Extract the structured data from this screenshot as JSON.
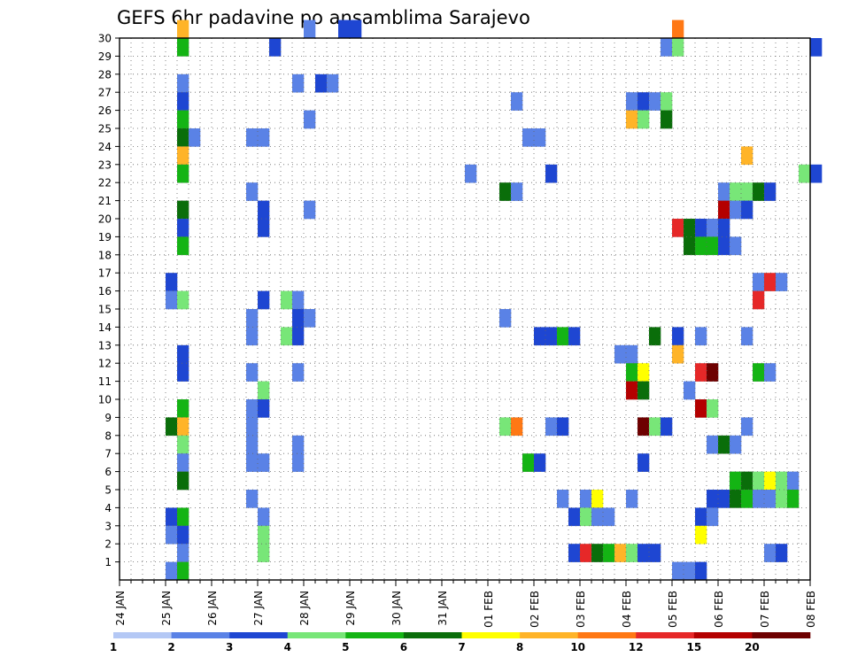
{
  "chart_data": {
    "type": "heatmap",
    "title": "GEFS 6hr padavine po ansamblima Sarajevo",
    "xlabel": "",
    "ylabel": "",
    "x_time_steps_per_day": 4,
    "x_tick_labels": [
      "24 JAN",
      "25 JAN",
      "26 JAN",
      "27 JAN",
      "28 JAN",
      "29 JAN",
      "30 JAN",
      "31 JAN",
      "01 FEB",
      "02 FEB",
      "03 FEB",
      "04 FEB",
      "05 FEB",
      "06 FEB",
      "07 FEB",
      "08 FEB"
    ],
    "ylim": [
      0,
      30
    ],
    "y_tick_labels": [
      "1",
      "2",
      "3",
      "4",
      "5",
      "6",
      "7",
      "8",
      "9",
      "10",
      "11",
      "12",
      "13",
      "14",
      "15",
      "16",
      "17",
      "18",
      "19",
      "20",
      "21",
      "22",
      "23",
      "24",
      "25",
      "26",
      "27",
      "28",
      "29",
      "30"
    ],
    "grid": true,
    "legend": "bottom-colorbar",
    "colorbar": {
      "levels": [
        "1",
        "2",
        "3",
        "4",
        "5",
        "6",
        "7",
        "8",
        "10",
        "12",
        "15",
        "20"
      ],
      "colors": [
        "#b4c8f5",
        "#5a82e6",
        "#1e46d2",
        "#78e678",
        "#14b414",
        "#0a6e0a",
        "#ffff00",
        "#ffb428",
        "#ff7814",
        "#e62828",
        "#b40000",
        "#6e0000"
      ]
    },
    "cells": [
      [
        30,
        5,
        7
      ],
      [
        30,
        16,
        1
      ],
      [
        30,
        19,
        2
      ],
      [
        30,
        20,
        2
      ],
      [
        30,
        48,
        8
      ],
      [
        29,
        5,
        4
      ],
      [
        29,
        13,
        2
      ],
      [
        29,
        47,
        1
      ],
      [
        29,
        48,
        3
      ],
      [
        29,
        60,
        2
      ],
      [
        27,
        5,
        1
      ],
      [
        27,
        15,
        1
      ],
      [
        27,
        17,
        2
      ],
      [
        27,
        18,
        1
      ],
      [
        26,
        5,
        2
      ],
      [
        26,
        34,
        1
      ],
      [
        26,
        44,
        1
      ],
      [
        26,
        45,
        2
      ],
      [
        26,
        46,
        1
      ],
      [
        26,
        47,
        3
      ],
      [
        25,
        5,
        4
      ],
      [
        25,
        16,
        1
      ],
      [
        25,
        44,
        7
      ],
      [
        25,
        45,
        3
      ],
      [
        25,
        47,
        5
      ],
      [
        24,
        5,
        5
      ],
      [
        24,
        6,
        1
      ],
      [
        24,
        11,
        1
      ],
      [
        24,
        12,
        1
      ],
      [
        24,
        35,
        1
      ],
      [
        24,
        36,
        1
      ],
      [
        23,
        5,
        7
      ],
      [
        23,
        54,
        7
      ],
      [
        22,
        5,
        4
      ],
      [
        22,
        30,
        1
      ],
      [
        22,
        37,
        2
      ],
      [
        22,
        59,
        3
      ],
      [
        22,
        60,
        2
      ],
      [
        21,
        11,
        1
      ],
      [
        21,
        33,
        5
      ],
      [
        21,
        34,
        1
      ],
      [
        21,
        52,
        1
      ],
      [
        21,
        53,
        3
      ],
      [
        21,
        54,
        3
      ],
      [
        21,
        55,
        5
      ],
      [
        21,
        56,
        2
      ],
      [
        20,
        5,
        5
      ],
      [
        20,
        12,
        2
      ],
      [
        20,
        16,
        1
      ],
      [
        20,
        52,
        10
      ],
      [
        20,
        53,
        1
      ],
      [
        20,
        54,
        2
      ],
      [
        19,
        5,
        2
      ],
      [
        19,
        12,
        2
      ],
      [
        19,
        48,
        9
      ],
      [
        19,
        49,
        5
      ],
      [
        19,
        50,
        2
      ],
      [
        19,
        51,
        1
      ],
      [
        19,
        52,
        2
      ],
      [
        18,
        5,
        4
      ],
      [
        18,
        49,
        5
      ],
      [
        18,
        50,
        4
      ],
      [
        18,
        51,
        4
      ],
      [
        18,
        52,
        2
      ],
      [
        18,
        53,
        1
      ],
      [
        16,
        4,
        2
      ],
      [
        16,
        55,
        1
      ],
      [
        16,
        56,
        9
      ],
      [
        16,
        57,
        1
      ],
      [
        15,
        4,
        1
      ],
      [
        15,
        5,
        3
      ],
      [
        15,
        12,
        2
      ],
      [
        15,
        14,
        3
      ],
      [
        15,
        15,
        1
      ],
      [
        15,
        55,
        9
      ],
      [
        14,
        11,
        1
      ],
      [
        14,
        15,
        2
      ],
      [
        14,
        16,
        1
      ],
      [
        14,
        33,
        1
      ],
      [
        13,
        11,
        1
      ],
      [
        13,
        14,
        3
      ],
      [
        13,
        15,
        2
      ],
      [
        13,
        36,
        2
      ],
      [
        13,
        37,
        2
      ],
      [
        13,
        38,
        4
      ],
      [
        13,
        39,
        2
      ],
      [
        13,
        46,
        5
      ],
      [
        13,
        48,
        2
      ],
      [
        13,
        50,
        1
      ],
      [
        13,
        54,
        1
      ],
      [
        12,
        5,
        2
      ],
      [
        12,
        43,
        1
      ],
      [
        12,
        44,
        1
      ],
      [
        12,
        48,
        7
      ],
      [
        11,
        5,
        2
      ],
      [
        11,
        11,
        1
      ],
      [
        11,
        15,
        1
      ],
      [
        11,
        44,
        4
      ],
      [
        11,
        45,
        6
      ],
      [
        11,
        50,
        9
      ],
      [
        11,
        51,
        11
      ],
      [
        11,
        55,
        4
      ],
      [
        11,
        56,
        1
      ],
      [
        10,
        12,
        3
      ],
      [
        10,
        44,
        10
      ],
      [
        10,
        45,
        5
      ],
      [
        10,
        49,
        1
      ],
      [
        9,
        5,
        4
      ],
      [
        9,
        11,
        1
      ],
      [
        9,
        12,
        2
      ],
      [
        9,
        50,
        10
      ],
      [
        9,
        51,
        3
      ],
      [
        8,
        4,
        5
      ],
      [
        8,
        5,
        7
      ],
      [
        8,
        11,
        1
      ],
      [
        8,
        33,
        3
      ],
      [
        8,
        34,
        8
      ],
      [
        8,
        37,
        1
      ],
      [
        8,
        38,
        2
      ],
      [
        8,
        45,
        11
      ],
      [
        8,
        46,
        3
      ],
      [
        8,
        47,
        2
      ],
      [
        8,
        54,
        1
      ],
      [
        7,
        5,
        3
      ],
      [
        7,
        11,
        1
      ],
      [
        7,
        15,
        1
      ],
      [
        7,
        51,
        1
      ],
      [
        7,
        52,
        5
      ],
      [
        7,
        53,
        1
      ],
      [
        6,
        5,
        1
      ],
      [
        6,
        11,
        1
      ],
      [
        6,
        12,
        1
      ],
      [
        6,
        15,
        1
      ],
      [
        6,
        35,
        4
      ],
      [
        6,
        36,
        2
      ],
      [
        6,
        45,
        2
      ],
      [
        5,
        5,
        5
      ],
      [
        5,
        53,
        4
      ],
      [
        5,
        54,
        5
      ],
      [
        5,
        55,
        3
      ],
      [
        5,
        56,
        6
      ],
      [
        5,
        57,
        3
      ],
      [
        5,
        58,
        1
      ],
      [
        4,
        11,
        1
      ],
      [
        4,
        38,
        1
      ],
      [
        4,
        40,
        1
      ],
      [
        4,
        41,
        6
      ],
      [
        4,
        44,
        1
      ],
      [
        4,
        51,
        2
      ],
      [
        4,
        52,
        2
      ],
      [
        4,
        53,
        5
      ],
      [
        4,
        54,
        4
      ],
      [
        4,
        55,
        1
      ],
      [
        4,
        56,
        1
      ],
      [
        4,
        57,
        3
      ],
      [
        4,
        58,
        4
      ],
      [
        3,
        4,
        2
      ],
      [
        3,
        5,
        4
      ],
      [
        3,
        12,
        1
      ],
      [
        3,
        39,
        2
      ],
      [
        3,
        40,
        3
      ],
      [
        3,
        41,
        1
      ],
      [
        3,
        42,
        1
      ],
      [
        3,
        50,
        2
      ],
      [
        3,
        51,
        1
      ],
      [
        2,
        4,
        1
      ],
      [
        2,
        5,
        2
      ],
      [
        2,
        12,
        3
      ],
      [
        2,
        50,
        6
      ],
      [
        1,
        5,
        1
      ],
      [
        1,
        12,
        3
      ],
      [
        1,
        39,
        2
      ],
      [
        1,
        40,
        9
      ],
      [
        1,
        41,
        5
      ],
      [
        1,
        42,
        4
      ],
      [
        1,
        43,
        7
      ],
      [
        1,
        44,
        3
      ],
      [
        1,
        45,
        2
      ],
      [
        1,
        46,
        2
      ],
      [
        1,
        56,
        1
      ],
      [
        1,
        57,
        2
      ],
      [
        0,
        4,
        1
      ],
      [
        0,
        5,
        4
      ],
      [
        0,
        48,
        1
      ],
      [
        0,
        49,
        1
      ],
      [
        0,
        50,
        2
      ]
    ]
  }
}
